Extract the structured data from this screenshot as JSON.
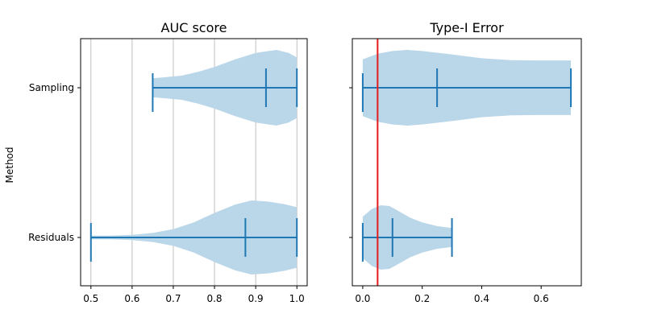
{
  "chart_data": [
    {
      "type": "violin",
      "title": "AUC score",
      "xlabel": "",
      "ylabel": "Method",
      "xlim": [
        0.475,
        1.025
      ],
      "xticks": [
        "0.5",
        "0.6",
        "0.7",
        "0.8",
        "0.9",
        "1.0"
      ],
      "xtick_values": [
        0.5,
        0.6,
        0.7,
        0.8,
        0.9,
        1.0
      ],
      "grid": "vertical",
      "categories": [
        "Sampling",
        "Residuals"
      ],
      "violins": [
        {
          "category": "Sampling",
          "min": 0.65,
          "median": 0.925,
          "max": 1.0,
          "profile": [
            [
              0.65,
              0.25
            ],
            [
              0.68,
              0.28
            ],
            [
              0.72,
              0.32
            ],
            [
              0.76,
              0.42
            ],
            [
              0.8,
              0.55
            ],
            [
              0.85,
              0.75
            ],
            [
              0.9,
              0.92
            ],
            [
              0.95,
              1.0
            ],
            [
              0.98,
              0.92
            ],
            [
              1.0,
              0.8
            ]
          ]
        },
        {
          "category": "Residuals",
          "min": 0.5,
          "median": 0.875,
          "max": 1.0,
          "profile": [
            [
              0.5,
              0.05
            ],
            [
              0.55,
              0.05
            ],
            [
              0.6,
              0.07
            ],
            [
              0.65,
              0.12
            ],
            [
              0.7,
              0.22
            ],
            [
              0.75,
              0.4
            ],
            [
              0.8,
              0.65
            ],
            [
              0.85,
              0.87
            ],
            [
              0.89,
              0.98
            ],
            [
              0.93,
              0.95
            ],
            [
              0.97,
              0.88
            ],
            [
              1.0,
              0.8
            ]
          ]
        }
      ],
      "series_color": "#1f77b4",
      "fill_color": "#bad6e9"
    },
    {
      "type": "violin",
      "title": "Type-I Error",
      "xlabel": "",
      "ylabel": "",
      "xlim": [
        -0.035,
        0.735
      ],
      "xticks": [
        "0.0",
        "0.2",
        "0.4",
        "0.6"
      ],
      "xtick_values": [
        0.0,
        0.2,
        0.4,
        0.6
      ],
      "grid": "none",
      "categories": [
        "Sampling",
        "Residuals"
      ],
      "reference_line": {
        "x": 0.05,
        "color": "#e41a1c"
      },
      "violins": [
        {
          "category": "Sampling",
          "min": 0.0,
          "median": 0.25,
          "max": 0.7,
          "profile": [
            [
              0.0,
              0.75
            ],
            [
              0.05,
              0.9
            ],
            [
              0.1,
              0.97
            ],
            [
              0.15,
              1.0
            ],
            [
              0.2,
              0.97
            ],
            [
              0.3,
              0.88
            ],
            [
              0.4,
              0.78
            ],
            [
              0.5,
              0.73
            ],
            [
              0.6,
              0.72
            ],
            [
              0.7,
              0.72
            ]
          ]
        },
        {
          "category": "Residuals",
          "min": 0.0,
          "median": 0.1,
          "max": 0.3,
          "profile": [
            [
              0.0,
              0.55
            ],
            [
              0.03,
              0.75
            ],
            [
              0.06,
              0.85
            ],
            [
              0.09,
              0.83
            ],
            [
              0.12,
              0.7
            ],
            [
              0.16,
              0.52
            ],
            [
              0.2,
              0.4
            ],
            [
              0.25,
              0.3
            ],
            [
              0.3,
              0.25
            ]
          ]
        }
      ],
      "series_color": "#1f77b4",
      "fill_color": "#bad6e9"
    }
  ]
}
